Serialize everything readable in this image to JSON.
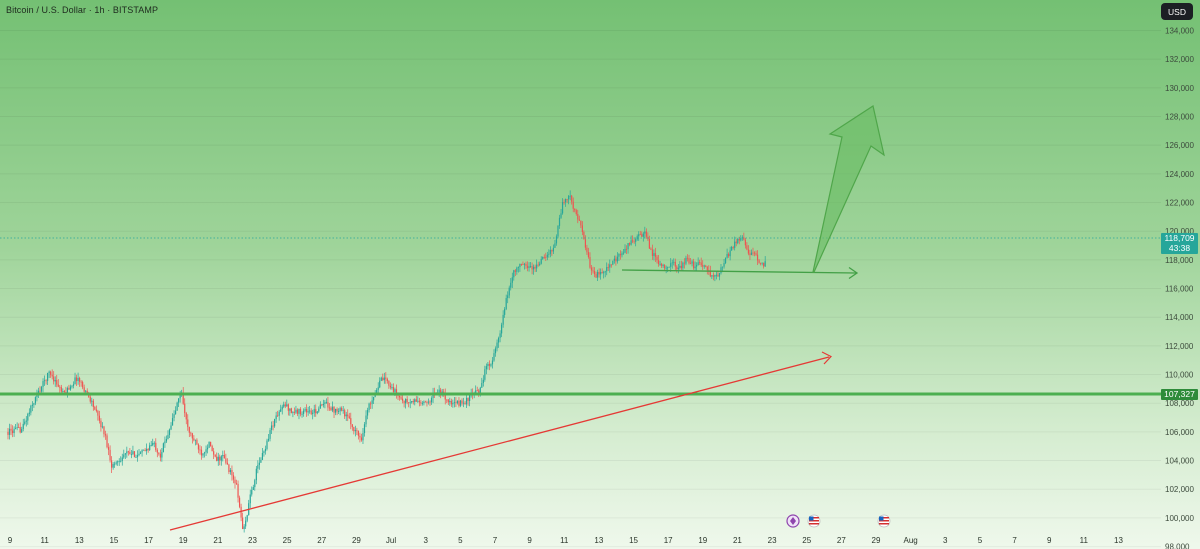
{
  "header": {
    "symbol_title": "Bitcoin / U.S. Dollar · 1h · BITSTAMP",
    "currency_button": "USD"
  },
  "price_labels": {
    "last_price": "118,709",
    "countdown": "43:38",
    "level_price": "107,327"
  },
  "colors": {
    "bull_candle": "#26a69a",
    "bear_candle": "#ef5350",
    "support_line": "#4caf50",
    "trend_line": "#e53935",
    "arrow_fill": "#69bb63",
    "last_price_badge": "#26a69a",
    "level_badge": "#2e8b3a"
  },
  "icons": [
    "crypto-event-icon",
    "us-flag-icon",
    "us-flag-icon"
  ],
  "chart_data": {
    "type": "candlestick",
    "title": "Bitcoin / U.S. Dollar · 1h · BITSTAMP",
    "currency": "USD",
    "ylim": [
      97500,
      135500
    ],
    "y_ticks": [
      98000,
      100000,
      102000,
      104000,
      106000,
      108000,
      110000,
      112000,
      114000,
      116000,
      118000,
      120000,
      122000,
      124000,
      126000,
      128000,
      130000,
      132000,
      134000
    ],
    "y_tick_labels": [
      "98,000",
      "100,000",
      "102,000",
      "104,000",
      "106,000",
      "108,000",
      "110,000",
      "112,000",
      "114,000",
      "116,000",
      "118,000",
      "120,000",
      "122,000",
      "124,000",
      "126,000",
      "128,000",
      "130,000",
      "132,000",
      "134,000"
    ],
    "x_tick_labels": [
      "9",
      "11",
      "13",
      "15",
      "17",
      "19",
      "21",
      "23",
      "25",
      "27",
      "29",
      "Jul",
      "3",
      "5",
      "7",
      "9",
      "11",
      "13",
      "15",
      "17",
      "19",
      "21",
      "23",
      "25",
      "27",
      "29",
      "Aug",
      "3",
      "5",
      "7",
      "9",
      "11",
      "13"
    ],
    "price_path": [
      [
        0,
        106000
      ],
      [
        2,
        106200
      ],
      [
        4,
        108400
      ],
      [
        6,
        110200
      ],
      [
        8,
        108600
      ],
      [
        10,
        109800
      ],
      [
        12,
        108200
      ],
      [
        14,
        105800
      ],
      [
        15,
        103600
      ],
      [
        17,
        104500
      ],
      [
        19,
        104400
      ],
      [
        21,
        105200
      ],
      [
        22,
        104400
      ],
      [
        24,
        107200
      ],
      [
        25,
        108900
      ],
      [
        26,
        106100
      ],
      [
        28,
        104500
      ],
      [
        29,
        105200
      ],
      [
        30,
        104000
      ],
      [
        31,
        104300
      ],
      [
        32,
        103300
      ],
      [
        33,
        102200
      ],
      [
        33.5,
        100500
      ],
      [
        34,
        99000
      ],
      [
        35,
        101500
      ],
      [
        36,
        103500
      ],
      [
        37,
        104700
      ],
      [
        38,
        106300
      ],
      [
        39,
        107300
      ],
      [
        40,
        107900
      ],
      [
        41,
        107400
      ],
      [
        42,
        107400
      ],
      [
        43,
        107500
      ],
      [
        44,
        107300
      ],
      [
        45,
        107700
      ],
      [
        46,
        108000
      ],
      [
        47,
        107500
      ],
      [
        48,
        107700
      ],
      [
        49,
        107000
      ],
      [
        50,
        106200
      ],
      [
        51,
        105500
      ],
      [
        52,
        107700
      ],
      [
        53,
        108800
      ],
      [
        54,
        109700
      ],
      [
        55,
        109400
      ],
      [
        56,
        108700
      ],
      [
        57,
        108200
      ],
      [
        58,
        108000
      ],
      [
        59,
        108200
      ],
      [
        60,
        107900
      ],
      [
        61,
        108300
      ],
      [
        62,
        108900
      ],
      [
        63,
        108500
      ],
      [
        64,
        107900
      ],
      [
        65,
        108000
      ],
      [
        66,
        108100
      ],
      [
        67,
        108600
      ],
      [
        68,
        108800
      ],
      [
        69,
        110400
      ],
      [
        70,
        111100
      ],
      [
        71,
        112700
      ],
      [
        72,
        115300
      ],
      [
        73,
        117200
      ],
      [
        74,
        117600
      ],
      [
        75,
        117600
      ],
      [
        76,
        117400
      ],
      [
        77,
        118000
      ],
      [
        78,
        118300
      ],
      [
        79,
        119200
      ],
      [
        80,
        121800
      ],
      [
        81,
        122500
      ],
      [
        82,
        121300
      ],
      [
        83,
        119800
      ],
      [
        84,
        117600
      ],
      [
        85,
        116900
      ],
      [
        86,
        117300
      ],
      [
        87,
        117600
      ],
      [
        88,
        118100
      ],
      [
        89,
        118600
      ],
      [
        90,
        119300
      ],
      [
        91,
        119600
      ],
      [
        92,
        119800
      ],
      [
        93,
        118500
      ],
      [
        94,
        117700
      ],
      [
        95,
        117600
      ],
      [
        96,
        117700
      ],
      [
        97,
        117400
      ],
      [
        98,
        118000
      ],
      [
        99,
        117600
      ],
      [
        100,
        117800
      ],
      [
        101,
        117200
      ],
      [
        102,
        116700
      ],
      [
        103,
        117300
      ],
      [
        104,
        118400
      ],
      [
        105,
        119200
      ],
      [
        106,
        119700
      ],
      [
        107,
        118500
      ],
      [
        108,
        118200
      ],
      [
        109,
        117600
      ],
      [
        109.5,
        117800
      ]
    ],
    "annotations": [
      {
        "type": "horizontal_line",
        "label": "support",
        "price": 107327
      },
      {
        "type": "trend_line",
        "from": [
          "Jun 23",
          97300
        ],
        "to": [
          "Jul 26",
          109900
        ]
      },
      {
        "type": "range_arrow",
        "from": [
          "Jul 14",
          116400
        ],
        "to": [
          "Jul 26",
          116300
        ]
      },
      {
        "type": "projection_arrow",
        "from": [
          "Jul 25",
          116300
        ],
        "to": [
          "Jul 28",
          128500
        ]
      }
    ]
  }
}
